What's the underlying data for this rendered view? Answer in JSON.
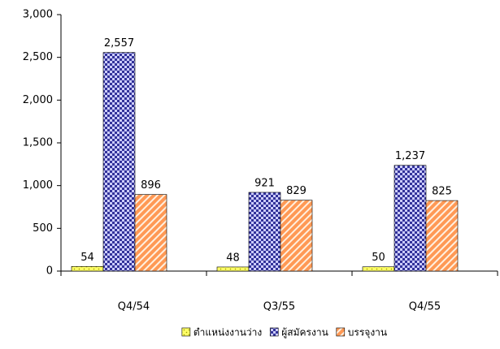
{
  "chart_data": {
    "type": "bar",
    "categories": [
      "Q4/54",
      "Q3/55",
      "Q4/55"
    ],
    "series": [
      {
        "name": "ตำแหน่งงานว่าง",
        "color": "#ffff66",
        "values": [
          54,
          48,
          50
        ],
        "value_labels": [
          "54",
          "48",
          "50"
        ]
      },
      {
        "name": "ผู้สมัครงาน",
        "color": "#333399",
        "values": [
          2557,
          921,
          1237
        ],
        "value_labels": [
          "2,557",
          "921",
          "1,237"
        ]
      },
      {
        "name": "บรรจุงาน",
        "color": "#ff9955",
        "values": [
          896,
          829,
          825
        ],
        "value_labels": [
          "896",
          "829",
          "825"
        ]
      }
    ],
    "ylim": [
      0,
      3000
    ],
    "yticks": [
      0,
      500,
      {
        "value": 1000,
        "label": "1,000"
      },
      {
        "value": 1500,
        "label": "1,500"
      },
      {
        "value": 2000,
        "label": "2,000"
      },
      {
        "value": 2500,
        "label": "2,500"
      },
      {
        "value": 3000,
        "label": "3,000"
      }
    ],
    "legend": "bottom"
  }
}
